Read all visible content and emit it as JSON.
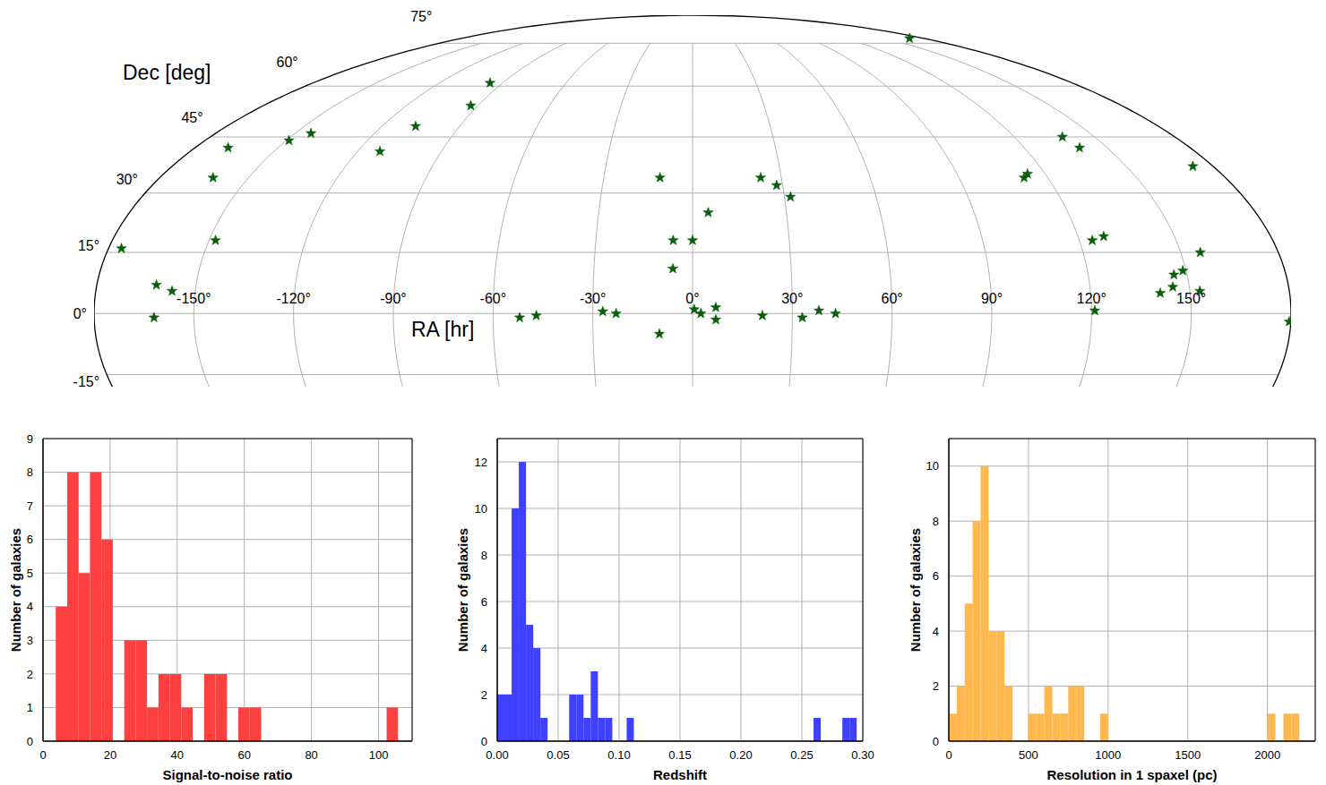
{
  "chart_data": [
    {
      "type": "scatter",
      "xlabel": "RA [hr]",
      "ylabel": "Dec [deg]",
      "color": "#0b5e0b",
      "marker": "star",
      "grid": true,
      "xlim": [
        -180,
        180
      ],
      "ylim": [
        -18,
        90
      ],
      "xticks": [
        {
          "value": -150,
          "label": "-150°"
        },
        {
          "value": -120,
          "label": "-120°"
        },
        {
          "value": -90,
          "label": "-90°"
        },
        {
          "value": -60,
          "label": "-60°"
        },
        {
          "value": -30,
          "label": "-30°"
        },
        {
          "value": 0,
          "label": "0°"
        },
        {
          "value": 30,
          "label": "30°"
        },
        {
          "value": 60,
          "label": "60°"
        },
        {
          "value": 90,
          "label": "90°"
        },
        {
          "value": 120,
          "label": "120°"
        },
        {
          "value": 150,
          "label": "150°"
        }
      ],
      "yticks": [
        {
          "value": -15,
          "label": "-15°"
        },
        {
          "value": 0,
          "label": "0°"
        },
        {
          "value": 15,
          "label": "15°"
        },
        {
          "value": 30,
          "label": "30°"
        },
        {
          "value": 45,
          "label": "45°"
        },
        {
          "value": 60,
          "label": "60°"
        },
        {
          "value": 75,
          "label": "75°"
        }
      ],
      "x": [
        169,
        -96,
        -93,
        -107,
        -144,
        -149,
        -112,
        -168,
        -162,
        -148,
        -176,
        -162,
        -157,
        -162,
        -52,
        -47,
        -27,
        -23,
        -11,
        -6,
        -6,
        0,
        5,
        -10,
        0.5,
        2.5,
        7,
        7,
        23,
        28,
        32,
        21,
        33,
        38,
        43,
        138,
        140,
        114,
        112,
        173,
        124,
        128,
        156,
        149,
        146,
        141,
        145,
        153,
        121,
        179.5
      ],
      "values": [
        77,
        61,
        54,
        48,
        46,
        44,
        41,
        42,
        34,
        18,
        16,
        7,
        5.5,
        -1,
        -1,
        -0.5,
        0.5,
        0,
        34,
        18,
        11,
        18,
        25,
        -5,
        1,
        0,
        1.5,
        -1.5,
        34,
        32,
        29,
        -0.5,
        -1,
        0.7,
        0,
        45,
        42,
        35,
        34,
        37,
        18,
        19,
        15,
        10.5,
        9.5,
        5,
        6.5,
        5.5,
        0.7,
        -2
      ]
    },
    {
      "type": "histogram",
      "xlabel": "Signal-to-noise ratio",
      "ylabel": "Number of galaxies",
      "color": "#ff4040",
      "grid": true,
      "xlim": [
        0,
        110
      ],
      "xticks": [
        0,
        20,
        40,
        60,
        80,
        100
      ],
      "ylim": [
        0,
        9
      ],
      "yticks": [
        0,
        1,
        2,
        3,
        4,
        5,
        6,
        7,
        8,
        9
      ],
      "bins": [
        3.8,
        7.2,
        10.6,
        14.0,
        17.4,
        20.8,
        24.2,
        27.6,
        31.0,
        34.4,
        37.8,
        41.2,
        44.6,
        48.0,
        51.4,
        54.8,
        58.2,
        61.6,
        65.0,
        68.4,
        71.8,
        75.2,
        78.6,
        82.0,
        85.4,
        88.8,
        92.2,
        95.6,
        99.0,
        102.4,
        105.8
      ],
      "values": [
        4,
        8,
        5,
        8,
        6,
        0,
        3,
        3,
        1,
        2,
        2,
        1,
        0,
        2,
        2,
        0,
        1,
        1,
        0,
        0,
        0,
        0,
        0,
        0,
        0,
        0,
        0,
        0,
        0,
        1
      ]
    },
    {
      "type": "histogram",
      "xlabel": "Redshift",
      "ylabel": "Number of galaxies",
      "color": "#4040ff",
      "grid": true,
      "xlim": [
        0,
        0.3
      ],
      "xticks": [
        {
          "value": 0,
          "label": "0.00"
        },
        {
          "value": 0.05,
          "label": "0.05"
        },
        {
          "value": 0.1,
          "label": "0.10"
        },
        {
          "value": 0.15,
          "label": "0.15"
        },
        {
          "value": 0.2,
          "label": "0.20"
        },
        {
          "value": 0.25,
          "label": "0.25"
        },
        {
          "value": 0.3,
          "label": "0.30"
        }
      ],
      "ylim": [
        0,
        13
      ],
      "yticks": [
        0,
        2,
        4,
        6,
        8,
        10,
        12
      ],
      "bins": [
        0,
        0.0059,
        0.0118,
        0.0177,
        0.0236,
        0.0295,
        0.0354,
        0.0413,
        0.0472,
        0.0531,
        0.059,
        0.0649,
        0.0708,
        0.0767,
        0.0826,
        0.0885,
        0.0944,
        0.1003,
        0.1062,
        0.1121,
        0.118,
        0.1239,
        0.1298,
        0.1357,
        0.1416,
        0.1475,
        0.1534,
        0.1593,
        0.1652,
        0.1711,
        0.177,
        0.1829,
        0.1888,
        0.1947,
        0.2006,
        0.2065,
        0.2124,
        0.2183,
        0.2242,
        0.2301,
        0.236,
        0.2419,
        0.2478,
        0.2537,
        0.2596,
        0.2655,
        0.2714,
        0.2773,
        0.2832,
        0.2891,
        0.295
      ],
      "values": [
        2,
        2,
        10,
        12,
        5,
        4,
        1,
        0,
        0,
        0,
        2,
        2,
        1,
        3,
        1,
        1,
        0,
        0,
        1,
        0,
        0,
        0,
        0,
        0,
        0,
        0,
        0,
        0,
        0,
        0,
        0,
        0,
        0,
        0,
        0,
        0,
        0,
        0,
        0,
        0,
        0,
        0,
        0,
        0,
        1,
        0,
        0,
        0,
        1,
        1
      ]
    },
    {
      "type": "histogram",
      "xlabel": "Resolution in 1 spaxel (pc)",
      "ylabel": "Number of galaxies",
      "color": "#ffb84d",
      "grid": true,
      "xlim": [
        0,
        2300
      ],
      "xticks": [
        0,
        500,
        1000,
        1500,
        2000
      ],
      "ylim": [
        0,
        11
      ],
      "yticks": [
        0,
        2,
        4,
        6,
        8,
        10
      ],
      "bins": [
        0,
        50,
        100,
        150,
        200,
        250,
        300,
        350,
        400,
        450,
        500,
        550,
        600,
        650,
        700,
        750,
        800,
        850,
        900,
        950,
        1000,
        1050,
        1100,
        1150,
        1200,
        1250,
        1300,
        1350,
        1400,
        1450,
        1500,
        1550,
        1600,
        1650,
        1700,
        1750,
        1800,
        1850,
        1900,
        1950,
        2000,
        2050,
        2100,
        2150,
        2200
      ],
      "values": [
        1,
        2,
        5,
        8,
        10,
        4,
        4,
        2,
        0,
        0,
        1,
        1,
        2,
        1,
        1,
        2,
        2,
        0,
        0,
        1,
        0,
        0,
        0,
        0,
        0,
        0,
        0,
        0,
        0,
        0,
        0,
        0,
        0,
        0,
        0,
        0,
        0,
        0,
        0,
        0,
        1,
        0,
        1,
        1
      ]
    }
  ]
}
